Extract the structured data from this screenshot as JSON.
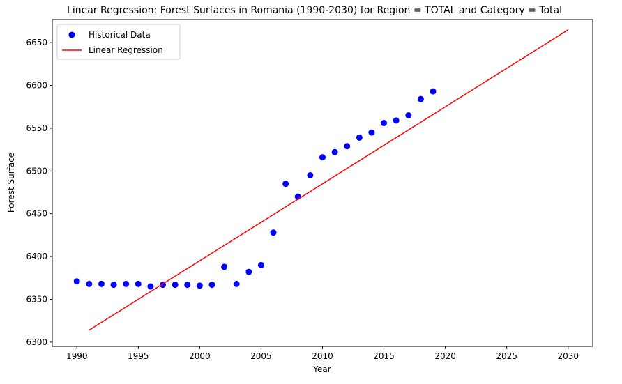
{
  "chart_data": {
    "type": "scatter",
    "title": "Linear Regression: Forest Surfaces in Romania (1990-2030) for Region = TOTAL and Category = Total",
    "xlabel": "Year",
    "ylabel": "Forest Surface",
    "xlim": [
      1988,
      2032
    ],
    "ylim": [
      6295,
      6677
    ],
    "x_ticks": [
      1990,
      1995,
      2000,
      2005,
      2010,
      2015,
      2020,
      2025,
      2030
    ],
    "y_ticks": [
      6300,
      6350,
      6400,
      6450,
      6500,
      6550,
      6600,
      6650
    ],
    "grid": false,
    "legend_position": "top-left",
    "series": [
      {
        "name": "Historical Data",
        "kind": "scatter",
        "color": "#0000ff",
        "x": [
          1990,
          1991,
          1992,
          1993,
          1994,
          1995,
          1996,
          1997,
          1998,
          1999,
          2000,
          2001,
          2002,
          2003,
          2004,
          2005,
          2006,
          2007,
          2008,
          2009,
          2010,
          2011,
          2012,
          2013,
          2014,
          2015,
          2016,
          2017,
          2018,
          2019
        ],
        "y": [
          6371,
          6368,
          6368,
          6367,
          6368,
          6368,
          6365,
          6367,
          6367,
          6367,
          6366,
          6367,
          6388,
          6368,
          6382,
          6390,
          6428,
          6485,
          6470,
          6495,
          6516,
          6522,
          6529,
          6539,
          6545,
          6556,
          6559,
          6565,
          6584,
          6593
        ]
      },
      {
        "name": "Linear Regression",
        "kind": "line",
        "color": "#ff0000",
        "x": [
          1991,
          2030
        ],
        "y": [
          6314,
          6665
        ]
      }
    ]
  }
}
